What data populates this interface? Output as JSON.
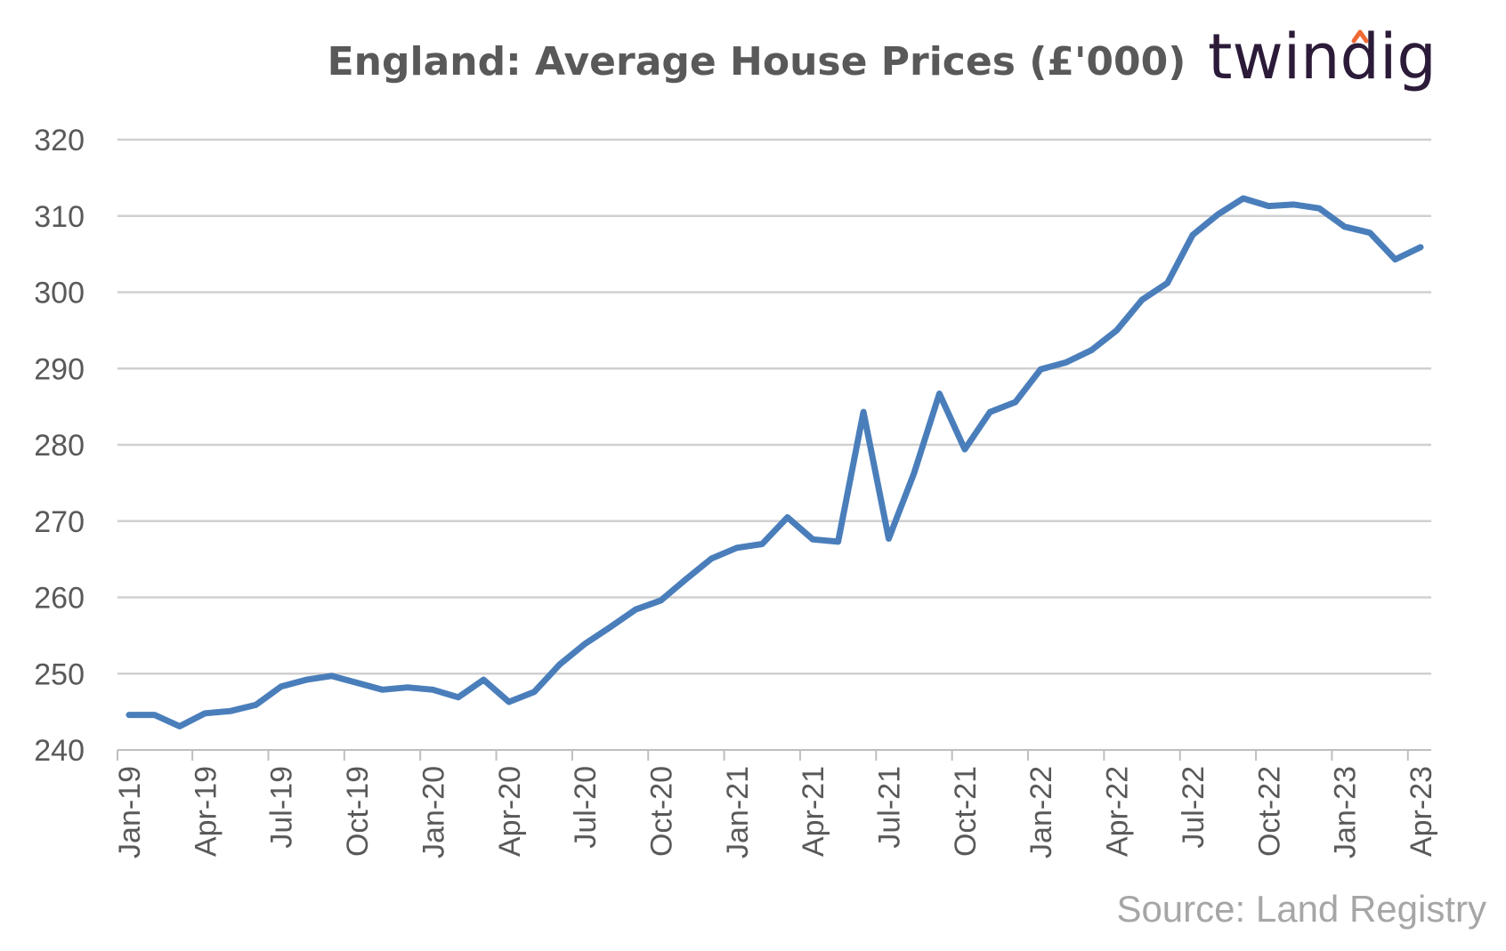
{
  "logo": {
    "text": "twindig",
    "text_color": "#2b1b38",
    "accent_color": "#f06a33"
  },
  "source": "Source: Land Registry",
  "chart_data": {
    "type": "line",
    "title": "England: Average House Prices (£'000)",
    "xlabel": "",
    "ylabel": "",
    "ylim": [
      240,
      320
    ],
    "yticks": [
      240,
      250,
      260,
      270,
      280,
      290,
      300,
      310,
      320
    ],
    "grid": true,
    "xtick_labels": [
      "Jan-19",
      "Apr-19",
      "Jul-19",
      "Oct-19",
      "Jan-20",
      "Apr-20",
      "Jul-20",
      "Oct-20",
      "Jan-21",
      "Apr-21",
      "Jul-21",
      "Oct-21",
      "Jan-22",
      "Apr-22",
      "Jul-22",
      "Oct-22",
      "Jan-23",
      "Apr-23"
    ],
    "x": [
      "Jan-19",
      "Feb-19",
      "Mar-19",
      "Apr-19",
      "May-19",
      "Jun-19",
      "Jul-19",
      "Aug-19",
      "Sep-19",
      "Oct-19",
      "Nov-19",
      "Dec-19",
      "Jan-20",
      "Feb-20",
      "Mar-20",
      "Apr-20",
      "May-20",
      "Jun-20",
      "Jul-20",
      "Aug-20",
      "Sep-20",
      "Oct-20",
      "Nov-20",
      "Dec-20",
      "Jan-21",
      "Feb-21",
      "Mar-21",
      "Apr-21",
      "May-21",
      "Jun-21",
      "Jul-21",
      "Aug-21",
      "Sep-21",
      "Oct-21",
      "Nov-21",
      "Dec-21",
      "Jan-22",
      "Feb-22",
      "Mar-22",
      "Apr-22",
      "May-22",
      "Jun-22",
      "Jul-22",
      "Aug-22",
      "Sep-22",
      "Oct-22",
      "Nov-22",
      "Dec-22",
      "Jan-23",
      "Feb-23",
      "Mar-23",
      "Apr-23"
    ],
    "series": [
      {
        "color": "#4a7ebb",
        "values": [
          244.6,
          244.6,
          243.1,
          244.8,
          245.1,
          245.9,
          248.3,
          249.2,
          249.7,
          248.8,
          247.9,
          248.2,
          247.9,
          246.9,
          249.2,
          246.3,
          247.6,
          251.2,
          253.9,
          256.1,
          258.4,
          259.6,
          262.4,
          265.1,
          266.5,
          267.0,
          270.5,
          267.6,
          267.3,
          284.3,
          267.7,
          276.3,
          286.7,
          279.4,
          284.3,
          285.6,
          289.9,
          290.8,
          292.4,
          295.0,
          299.0,
          301.2,
          307.5,
          310.2,
          312.3,
          311.3,
          311.5,
          311.0,
          308.6,
          307.8,
          304.3,
          305.9
        ]
      }
    ]
  }
}
